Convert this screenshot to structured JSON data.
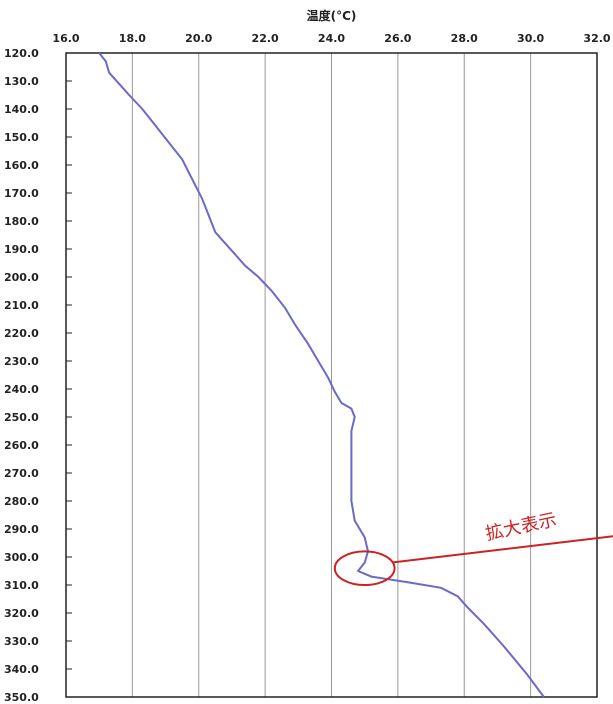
{
  "chart_data": {
    "type": "line",
    "title": "",
    "xlabel": "温度(°C)",
    "ylabel": "",
    "xlim": [
      16.0,
      32.0
    ],
    "ylim": [
      120.0,
      350.0
    ],
    "y_inverted": true,
    "x_axis_position": "top",
    "grid": "vertical",
    "x_ticks": [
      "16.0",
      "18.0",
      "20.0",
      "22.0",
      "24.0",
      "26.0",
      "28.0",
      "30.0",
      "32.0"
    ],
    "y_ticks": [
      "120.0",
      "130.0",
      "140.0",
      "150.0",
      "160.0",
      "170.0",
      "180.0",
      "190.0",
      "200.0",
      "210.0",
      "220.0",
      "230.0",
      "240.0",
      "250.0",
      "260.0",
      "270.0",
      "280.0",
      "290.0",
      "300.0",
      "310.0",
      "320.0",
      "330.0",
      "340.0",
      "350.0"
    ],
    "series": [
      {
        "name": "",
        "color": "#6a6ac8",
        "points": [
          {
            "x": 17.0,
            "y": 120.0
          },
          {
            "x": 17.2,
            "y": 123.0
          },
          {
            "x": 17.3,
            "y": 127.0
          },
          {
            "x": 17.6,
            "y": 131.0
          },
          {
            "x": 17.9,
            "y": 135.0
          },
          {
            "x": 18.3,
            "y": 140.0
          },
          {
            "x": 18.7,
            "y": 146.0
          },
          {
            "x": 19.1,
            "y": 152.0
          },
          {
            "x": 19.5,
            "y": 158.0
          },
          {
            "x": 19.8,
            "y": 165.0
          },
          {
            "x": 20.1,
            "y": 172.0
          },
          {
            "x": 20.3,
            "y": 178.0
          },
          {
            "x": 20.5,
            "y": 184.0
          },
          {
            "x": 20.8,
            "y": 188.0
          },
          {
            "x": 21.1,
            "y": 192.0
          },
          {
            "x": 21.4,
            "y": 196.0
          },
          {
            "x": 21.8,
            "y": 200.0
          },
          {
            "x": 22.2,
            "y": 205.0
          },
          {
            "x": 22.6,
            "y": 211.0
          },
          {
            "x": 22.9,
            "y": 217.0
          },
          {
            "x": 23.3,
            "y": 224.0
          },
          {
            "x": 23.6,
            "y": 230.0
          },
          {
            "x": 23.9,
            "y": 236.0
          },
          {
            "x": 24.1,
            "y": 241.0
          },
          {
            "x": 24.3,
            "y": 245.0
          },
          {
            "x": 24.6,
            "y": 247.0
          },
          {
            "x": 24.7,
            "y": 250.0
          },
          {
            "x": 24.6,
            "y": 255.0
          },
          {
            "x": 24.6,
            "y": 263.0
          },
          {
            "x": 24.6,
            "y": 272.0
          },
          {
            "x": 24.6,
            "y": 280.0
          },
          {
            "x": 24.7,
            "y": 287.0
          },
          {
            "x": 25.0,
            "y": 293.0
          },
          {
            "x": 25.1,
            "y": 298.0
          },
          {
            "x": 25.0,
            "y": 302.0
          },
          {
            "x": 24.8,
            "y": 305.0
          },
          {
            "x": 25.2,
            "y": 307.0
          },
          {
            "x": 26.3,
            "y": 309.0
          },
          {
            "x": 27.3,
            "y": 311.0
          },
          {
            "x": 27.8,
            "y": 314.0
          },
          {
            "x": 28.1,
            "y": 318.0
          },
          {
            "x": 28.6,
            "y": 324.0
          },
          {
            "x": 29.2,
            "y": 332.0
          },
          {
            "x": 29.9,
            "y": 342.0
          },
          {
            "x": 30.4,
            "y": 350.0
          }
        ]
      }
    ],
    "annotation": {
      "text": "拡大表示",
      "color": "#cc2222",
      "circle_center": {
        "x": 25.0,
        "y": 304.0
      },
      "circle_radius_x": 0.9,
      "circle_radius_y": 6.0
    }
  }
}
